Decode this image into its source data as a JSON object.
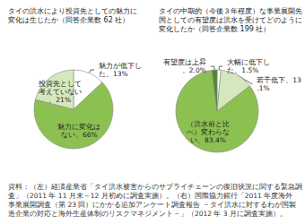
{
  "chart_data": [
    {
      "type": "pie",
      "title": "タイの洪水により投資先としての魅力に変化は生じたか（回答企業数 62 社）",
      "categories": [
        "魅力が低下した",
        "魅力に変化はない",
        "投資先として考えていない"
      ],
      "values": [
        13,
        66,
        21
      ],
      "value_labels": [
        "魅力が低下した、13%",
        "魅力に変化はない、66%",
        "投資先として考えていない、21%"
      ],
      "colors": [
        "#ffffff",
        "#8cc152",
        "#d5e8bd"
      ],
      "data_labels": true
    },
    {
      "type": "pie",
      "title": "タイの中期的（今後３年程度）な事業展開先国としての有望度は洪水を受けてどのように変化したか（回答企業数 199 社）",
      "categories": [
        "大幅に低下した",
        "若干低下",
        "（洪水前と比べ）変わらない",
        "有望度は上昇"
      ],
      "values": [
        1.5,
        13.1,
        83.4,
        2.0
      ],
      "value_labels": [
        "大幅に低下した、1.5%",
        "若干低下、13.1%",
        "（洪水前と比べ）変わらない、83.4%",
        "有望度は上昇、2.0%"
      ],
      "colors": [
        "#ffffff",
        "#d5e8bd",
        "#8cc152",
        "#4f8a2b"
      ],
      "data_labels": true
    }
  ],
  "source": "資料：（左）経済産業省「タイ洪水被害からのサプライチェーンの復旧状況に関する緊急調査」（2011 年 11 月末～12 月初めに調査実施）。（右）国際協力銀行「2011 年度海外事業展開調査（第 23 回）にかかる追加アンケート調査報告 －タイ洪水に対するわが国製造企業の対応と海外生産体制のリスクマネジメント－」（2012 年 3 月に調査実施）。"
}
